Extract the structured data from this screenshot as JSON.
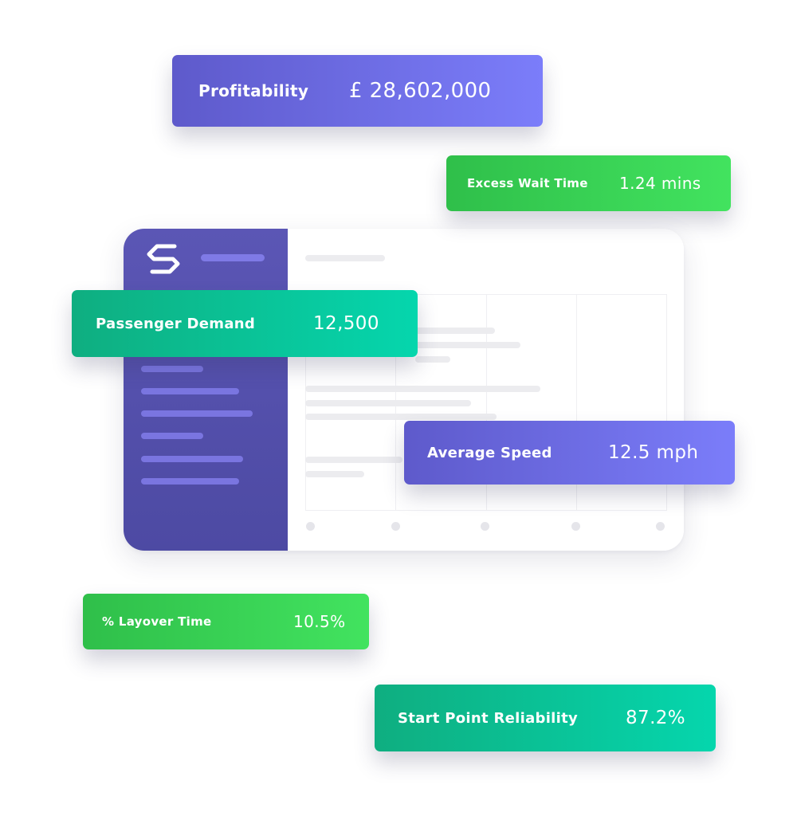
{
  "colors": {
    "sidebar": "#4d4aa3",
    "purple_card": "#6c6be6",
    "green_card": "#37d152",
    "teal_card": "#08c596"
  },
  "metrics": {
    "profitability": {
      "label": "Profitability",
      "value": "£ 28,602,000"
    },
    "excess_wait_time": {
      "label": "Excess Wait Time",
      "value": "1.24 mins"
    },
    "passenger_demand": {
      "label": "Passenger Demand",
      "value": "12,500"
    },
    "average_speed": {
      "label": "Average Speed",
      "value": "12.5 mph"
    },
    "layover_time": {
      "label": "% Layover Time",
      "value": "10.5%"
    },
    "start_point_reliability": {
      "label": "Start Point Reliability",
      "value": "87.2%"
    }
  },
  "dashboard": {
    "logo_icon": "swirl-logo-icon"
  }
}
